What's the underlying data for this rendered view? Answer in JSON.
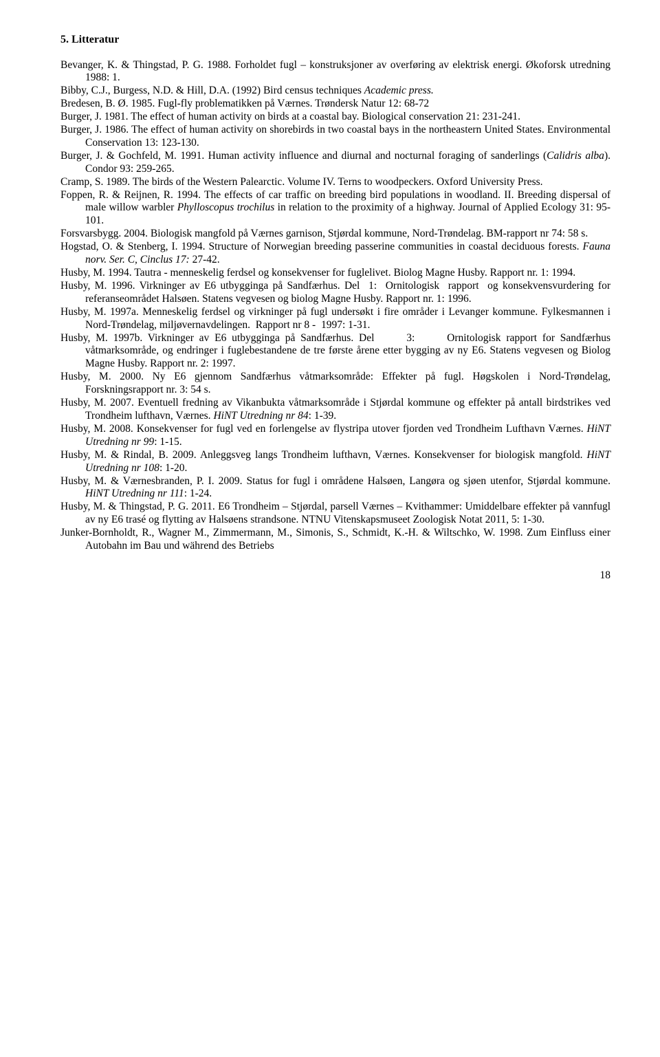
{
  "heading": "5. Litteratur",
  "refs": [
    "Bevanger, K. & Thingstad, P. G. 1988. Forholdet fugl – konstruksjoner av overføring av elektrisk energi. Økoforsk utredning 1988: 1.",
    "Bibby, C.J., Burgess, N.D. & Hill, D.A. (1992) Bird census techniques <i>Academic press.</i>",
    "Bredesen, B. Ø. 1985. Fugl-fly problematikken på Værnes. Trøndersk Natur 12: 68-72",
    "Burger, J. 1981. The effect of human activity on birds at a coastal bay. Biological conservation 21: 231-241.",
    "Burger, J. 1986. The effect of human activity on shorebirds in two coastal bays in the northeastern United States. Environmental Conservation 13: 123-130.",
    "Burger, J. & Gochfeld, M. 1991. Human activity influence and diurnal and nocturnal foraging of sanderlings (<i>Calidris alba</i>). Condor 93: 259-265.",
    "Cramp, S. 1989. The birds of the Western Palearctic. Volume IV. Terns to woodpeckers. Oxford University Press.",
    "Foppen, R. & Reijnen, R. 1994. The effects of car traffic on breeding bird populations in woodland. II. Breeding dispersal of male willow warbler <i>Phylloscopus trochilus</i> in relation to the proximity of a highway. Journal of Applied Ecology 31: 95-101.",
    "Forsvarsbygg. 2004. Biologisk mangfold på Værnes garnison, Stjørdal kommune, Nord-Trøndelag. BM-rapport nr 74: 58 s.",
    "Hogstad, O. & Stenberg, I. 1994. Structure of Norwegian breeding passerine communities in coastal deciduous forests. <i>Fauna norv. Ser. C, Cinclus 17:</i> 27-42.",
    "Husby, M. 1994. Tautra - menneskelig ferdsel og konsekvenser for fuglelivet. Biolog Magne Husby. Rapport nr. 1: 1994.",
    "Husby, M. 1996. Virkninger av E6 utbygginga på Sandfærhus. Del&nbsp;&nbsp;1:&nbsp;&nbsp;Ornitologisk&nbsp;&nbsp;rapport&nbsp;&nbsp;og konsekvensvurdering for referanseområdet Halsøen. Statens vegvesen og biolog Magne Husby. Rapport nr. 1: 1996.",
    "Husby, M. 1997a. Menneskelig ferdsel og virkninger på fugl undersøkt i fire områder i Levanger kommune. Fylkesmannen i Nord-Trøndelag, miljøvernavdelingen.&nbsp;&nbsp;Rapport nr 8 -&nbsp;&nbsp;1997: 1-31.",
    "Husby, M. 1997b. Virkninger av E6 utbygginga på Sandfærhus. Del&nbsp;&nbsp;&nbsp;&nbsp;&nbsp;&nbsp;3:&nbsp;&nbsp;&nbsp;&nbsp;&nbsp;&nbsp;Ornitologisk rapport for Sandfærhus våtmarksområde, og endringer i fuglebestandene de tre første årene etter bygging av ny E6. Statens vegvesen og Biolog Magne Husby. Rapport nr. 2: 1997.",
    "Husby, M. 2000. Ny E6 gjennom Sandfærhus våtmarksområde: Effekter på fugl. Høgskolen i Nord-Trøndelag, Forskningsrapport nr. 3: 54 s.",
    "Husby, M. 2007. Eventuell fredning av Vikanbukta våtmarksområde i Stjørdal kommune og effekter på antall birdstrikes ved Trondheim lufthavn, Værnes. <i>HiNT Utredning nr 84</i>: 1-39.",
    "Husby, M. 2008. Konsekvenser for fugl ved en forlengelse av flystripa utover fjorden ved Trondheim Lufthavn Værnes. <i>HiNT Utredning nr 99</i>: 1-15.",
    "Husby, M. & Rindal, B. 2009. Anleggsveg langs Trondheim lufthavn, Værnes. Konsekvenser for biologisk mangfold. <i>HiNT Utredning nr 108</i>: 1-20.",
    "Husby, M. & Værnesbranden, P. I. 2009. Status for fugl i områdene Halsøen, Langøra og sjøen utenfor, Stjørdal kommune. <i>HiNT Utredning nr 111</i>: 1-24.",
    "Husby, M. & Thingstad, P. G. 2011. E6 Trondheim – Stjørdal, parsell Værnes – Kvithammer: Umiddelbare effekter på vannfugl av ny E6 trasé og flytting av Halsøens strandsone. NTNU Vitenskapsmuseet Zoologisk Notat 2011, 5: 1-30.",
    "Junker-Bornholdt, R., Wagner M., Zimmermann, M., Simonis, S., Schmidt, K.-H. & Wiltschko, W. 1998. Zum Einfluss einer Autobahn im Bau und während des Betriebs"
  ],
  "pageNumber": "18"
}
